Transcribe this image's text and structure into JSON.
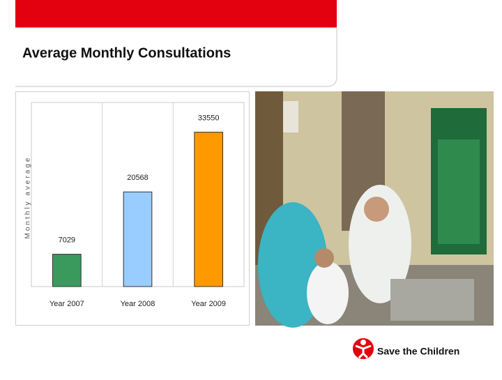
{
  "slide": {
    "title": "Average Monthly Consultations",
    "logo": "Save the Children"
  },
  "chart_data": {
    "type": "bar",
    "y_label": "Monthly average",
    "categories": [
      "Year 2007",
      "Year 2008",
      "Year 2009"
    ],
    "values": [
      7029,
      20568,
      33550
    ],
    "colors": [
      "#3a9a5e",
      "#99ccff",
      "#ff9900"
    ],
    "ylim": [
      0,
      40000
    ],
    "grid": true
  }
}
